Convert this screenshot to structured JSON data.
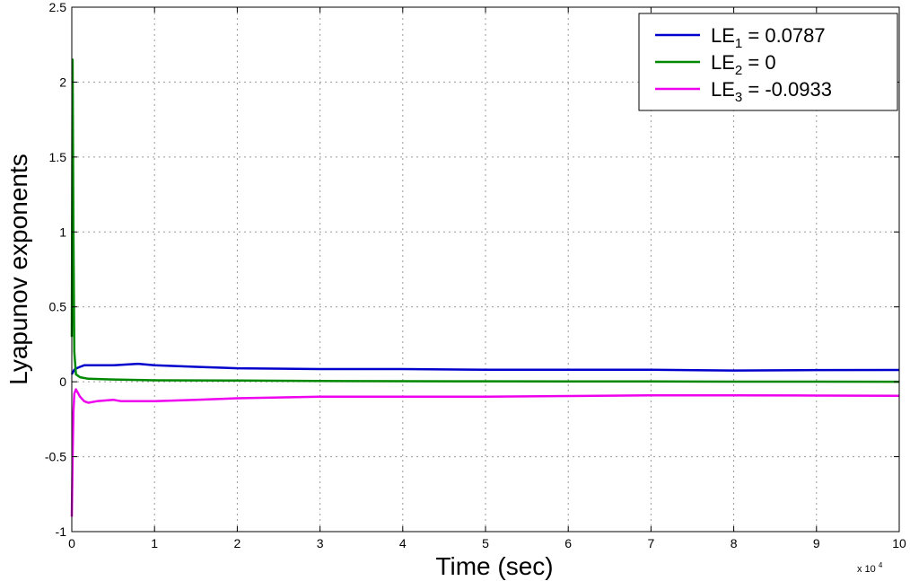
{
  "chart_data": {
    "type": "line",
    "title": "",
    "xlabel": "Time (sec)",
    "ylabel": "Lyapunov exponents",
    "x_multiplier_label": "x 10",
    "x_multiplier_exponent": "4",
    "xlim": [
      0,
      10
    ],
    "ylim": [
      -1,
      2.5
    ],
    "xticks": [
      0,
      1,
      2,
      3,
      4,
      5,
      6,
      7,
      8,
      9,
      10
    ],
    "yticks": [
      -1,
      -0.5,
      0,
      0.5,
      1,
      1.5,
      2,
      2.5
    ],
    "xtick_labels": [
      "0",
      "1",
      "2",
      "3",
      "4",
      "5",
      "6",
      "7",
      "8",
      "9",
      "10"
    ],
    "ytick_labels": [
      "-1",
      "-0.5",
      "0",
      "0.5",
      "1",
      "1.5",
      "2",
      "2.5"
    ],
    "grid": true,
    "legend_position": "top-right",
    "series": [
      {
        "name_main": "LE",
        "name_sub": "1",
        "name_rest": " = 0.0787",
        "color": "#0000cc",
        "x": [
          0,
          0.01,
          0.03,
          0.06,
          0.1,
          0.15,
          0.2,
          0.3,
          0.5,
          0.8,
          1.0,
          1.5,
          2,
          3,
          4,
          5,
          6,
          7,
          8,
          9,
          10
        ],
        "y": [
          0.05,
          0.06,
          0.08,
          0.09,
          0.1,
          0.11,
          0.11,
          0.11,
          0.11,
          0.12,
          0.11,
          0.1,
          0.09,
          0.085,
          0.085,
          0.08,
          0.08,
          0.08,
          0.075,
          0.078,
          0.0787
        ]
      },
      {
        "name_main": "LE",
        "name_sub": "2",
        "name_rest": " = 0",
        "color": "#008800",
        "x": [
          0,
          0.01,
          0.02,
          0.03,
          0.05,
          0.1,
          0.2,
          0.5,
          1,
          2,
          3,
          4,
          5,
          6,
          7,
          8,
          9,
          10
        ],
        "y": [
          0.3,
          2.15,
          1.0,
          0.2,
          0.05,
          0.03,
          0.02,
          0.015,
          0.01,
          0.008,
          0.005,
          0.004,
          0.003,
          0.002,
          0.002,
          0.001,
          0.001,
          0.0
        ]
      },
      {
        "name_main": "LE",
        "name_sub": "3",
        "name_rest": " = -0.0933",
        "color": "#ee00ee",
        "x": [
          0,
          0.01,
          0.02,
          0.03,
          0.05,
          0.1,
          0.15,
          0.2,
          0.3,
          0.5,
          0.6,
          1.0,
          1.5,
          2,
          3,
          4,
          5,
          6,
          7,
          8,
          9,
          10
        ],
        "y": [
          -0.9,
          -0.5,
          -0.2,
          -0.08,
          -0.05,
          -0.1,
          -0.13,
          -0.14,
          -0.13,
          -0.12,
          -0.13,
          -0.13,
          -0.12,
          -0.11,
          -0.1,
          -0.1,
          -0.1,
          -0.095,
          -0.09,
          -0.09,
          -0.092,
          -0.0933
        ]
      }
    ]
  }
}
